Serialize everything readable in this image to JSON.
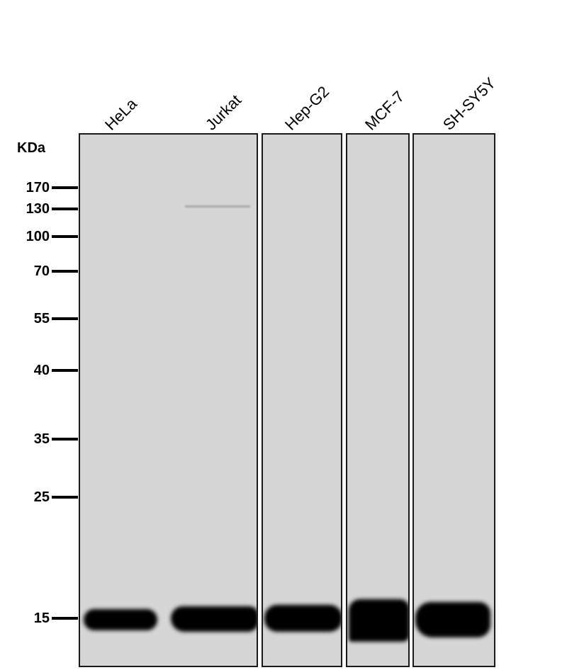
{
  "lanes": [
    "HeLa",
    "Jurkat",
    "Hep-G2",
    "MCF-7",
    "SH-SY5Y"
  ],
  "mw_unit": "KDa",
  "markers": [
    "170",
    "130",
    "100",
    "70",
    "55",
    "40",
    "35",
    "25",
    "15"
  ],
  "colors": {
    "membrane": "#d6d6d6",
    "band": "#000000"
  }
}
